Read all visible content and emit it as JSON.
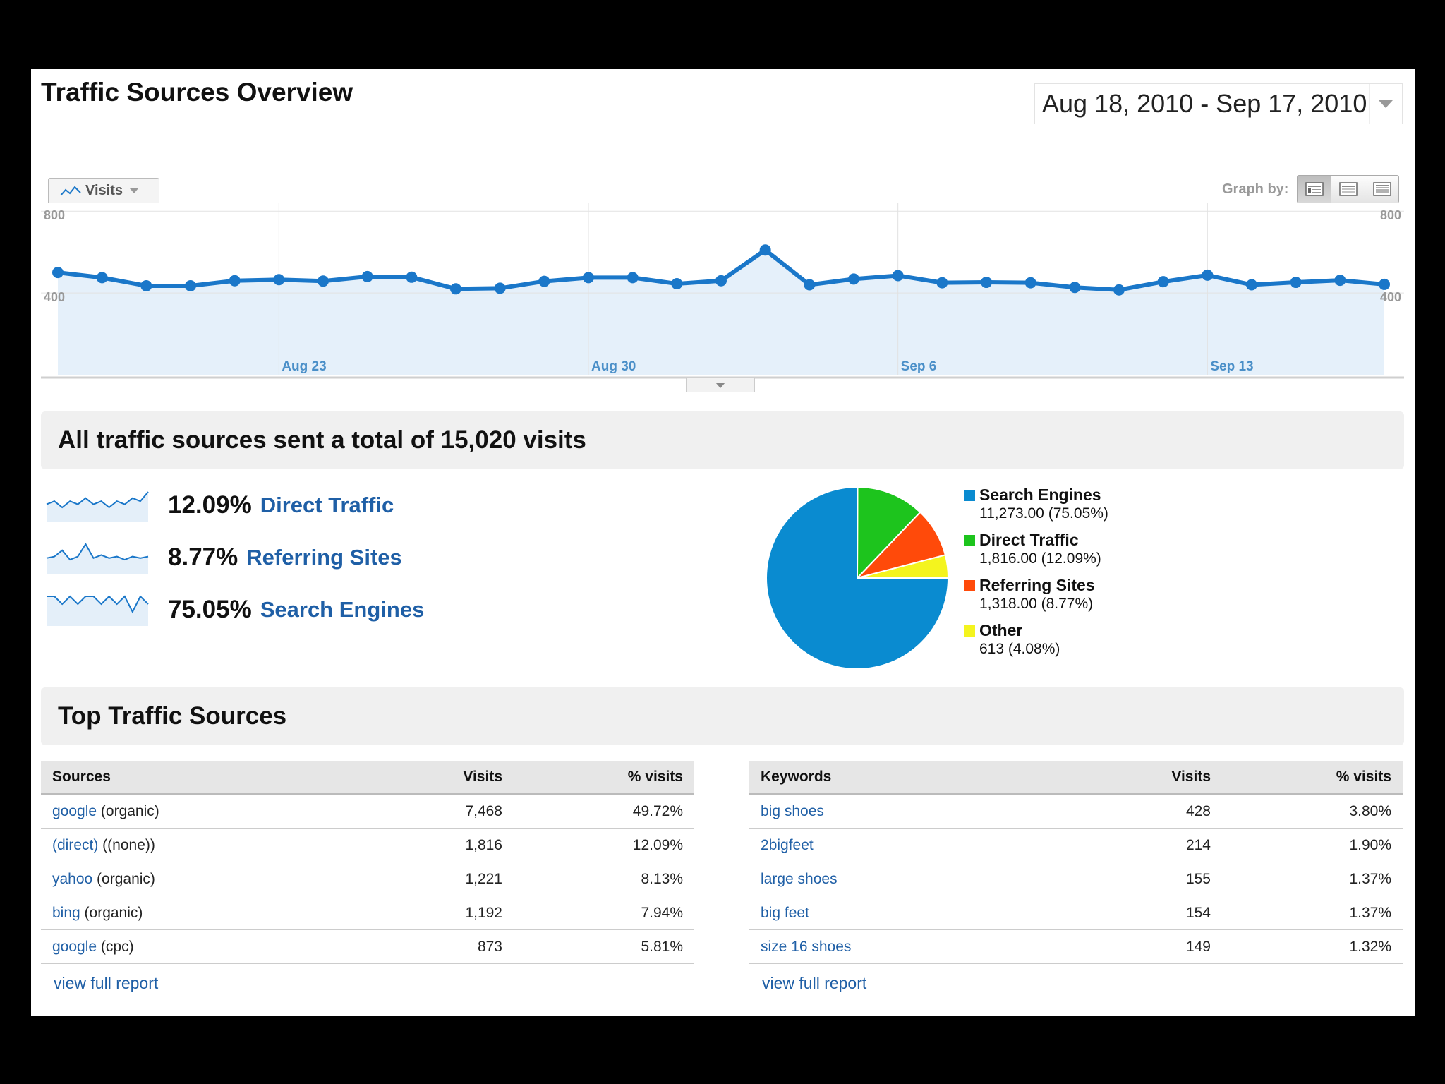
{
  "header": {
    "title": "Traffic Sources Overview",
    "date_range": "Aug 18, 2010 - Sep 17, 2010"
  },
  "graph_controls": {
    "metric_label": "Visits",
    "graph_by_label": "Graph by:",
    "graph_by_options": [
      "day",
      "week",
      "month"
    ]
  },
  "chart_data": {
    "type": "area",
    "series": [
      {
        "name": "Visits",
        "values": [
          500,
          475,
          435,
          435,
          460,
          465,
          458,
          480,
          477,
          420,
          423,
          457,
          475,
          475,
          445,
          460,
          610,
          440,
          468,
          485,
          450,
          452,
          450,
          427,
          415,
          455,
          487,
          440,
          452,
          462,
          442
        ]
      }
    ],
    "x": [
      "Aug 18",
      "Aug 19",
      "Aug 20",
      "Aug 21",
      "Aug 22",
      "Aug 23",
      "Aug 24",
      "Aug 25",
      "Aug 26",
      "Aug 27",
      "Aug 28",
      "Aug 29",
      "Aug 30",
      "Aug 31",
      "Sep 1",
      "Sep 2",
      "Sep 3",
      "Sep 4",
      "Sep 5",
      "Sep 6",
      "Sep 7",
      "Sep 8",
      "Sep 9",
      "Sep 10",
      "Sep 11",
      "Sep 12",
      "Sep 13",
      "Sep 14",
      "Sep 15",
      "Sep 16",
      "Sep 17"
    ],
    "x_tick_labels": [
      "Aug 23",
      "Aug 30",
      "Sep 6",
      "Sep 13"
    ],
    "y_ticks": [
      "800",
      "400"
    ],
    "ylim": [
      0,
      800
    ],
    "grid": true,
    "color": "#1a77c9",
    "fill_color": "#e5f0fa"
  },
  "summary": {
    "title": "All traffic sources sent a total of 15,020 visits",
    "rows": [
      {
        "pct": "12.09%",
        "name": "Direct Traffic",
        "spark": [
          5,
          6,
          4,
          6,
          5,
          7,
          5,
          6,
          4,
          6,
          5,
          7,
          6,
          9
        ]
      },
      {
        "pct": "8.77%",
        "name": "Referring Sites",
        "spark": [
          5,
          6,
          10,
          4,
          6,
          14,
          5,
          7,
          5,
          6,
          4,
          6,
          5,
          6
        ]
      },
      {
        "pct": "75.05%",
        "name": "Search Engines",
        "spark": [
          7,
          7,
          6,
          7,
          6,
          7,
          7,
          6,
          7,
          6,
          7,
          5,
          7,
          6
        ]
      }
    ]
  },
  "pie": {
    "type": "pie",
    "slices": [
      {
        "label": "Search Engines",
        "value": 11273,
        "value_text": "11,273.00 (75.05%)",
        "color": "#0a8bd0"
      },
      {
        "label": "Direct Traffic",
        "value": 1816,
        "value_text": "1,816.00 (12.09%)",
        "color": "#1dc41d"
      },
      {
        "label": "Referring Sites",
        "value": 1318,
        "value_text": "1,318.00 (8.77%)",
        "color": "#ff4a0a"
      },
      {
        "label": "Other",
        "value": 613,
        "value_text": "613 (4.08%)",
        "color": "#f4f41e"
      }
    ]
  },
  "top_sources": {
    "title": "Top Traffic Sources",
    "sources_table": {
      "headers": [
        "Sources",
        "Visits",
        "% visits"
      ],
      "rows": [
        {
          "link": "google",
          "rest": " (organic)",
          "visits": "7,468",
          "pct": "49.72%"
        },
        {
          "link": "(direct)",
          "rest": " ((none))",
          "visits": "1,816",
          "pct": "12.09%"
        },
        {
          "link": "yahoo",
          "rest": " (organic)",
          "visits": "1,221",
          "pct": "8.13%"
        },
        {
          "link": "bing",
          "rest": " (organic)",
          "visits": "1,192",
          "pct": "7.94%"
        },
        {
          "link": "google",
          "rest": " (cpc)",
          "visits": "873",
          "pct": "5.81%"
        }
      ],
      "view_full": "view full report"
    },
    "keywords_table": {
      "headers": [
        "Keywords",
        "Visits",
        "% visits"
      ],
      "rows": [
        {
          "link": "big shoes",
          "visits": "428",
          "pct": "3.80%"
        },
        {
          "link": "2bigfeet",
          "visits": "214",
          "pct": "1.90%"
        },
        {
          "link": "large shoes",
          "visits": "155",
          "pct": "1.37%"
        },
        {
          "link": "big feet",
          "visits": "154",
          "pct": "1.37%"
        },
        {
          "link": "size 16 shoes",
          "visits": "149",
          "pct": "1.32%"
        }
      ],
      "view_full": "view full report"
    }
  }
}
